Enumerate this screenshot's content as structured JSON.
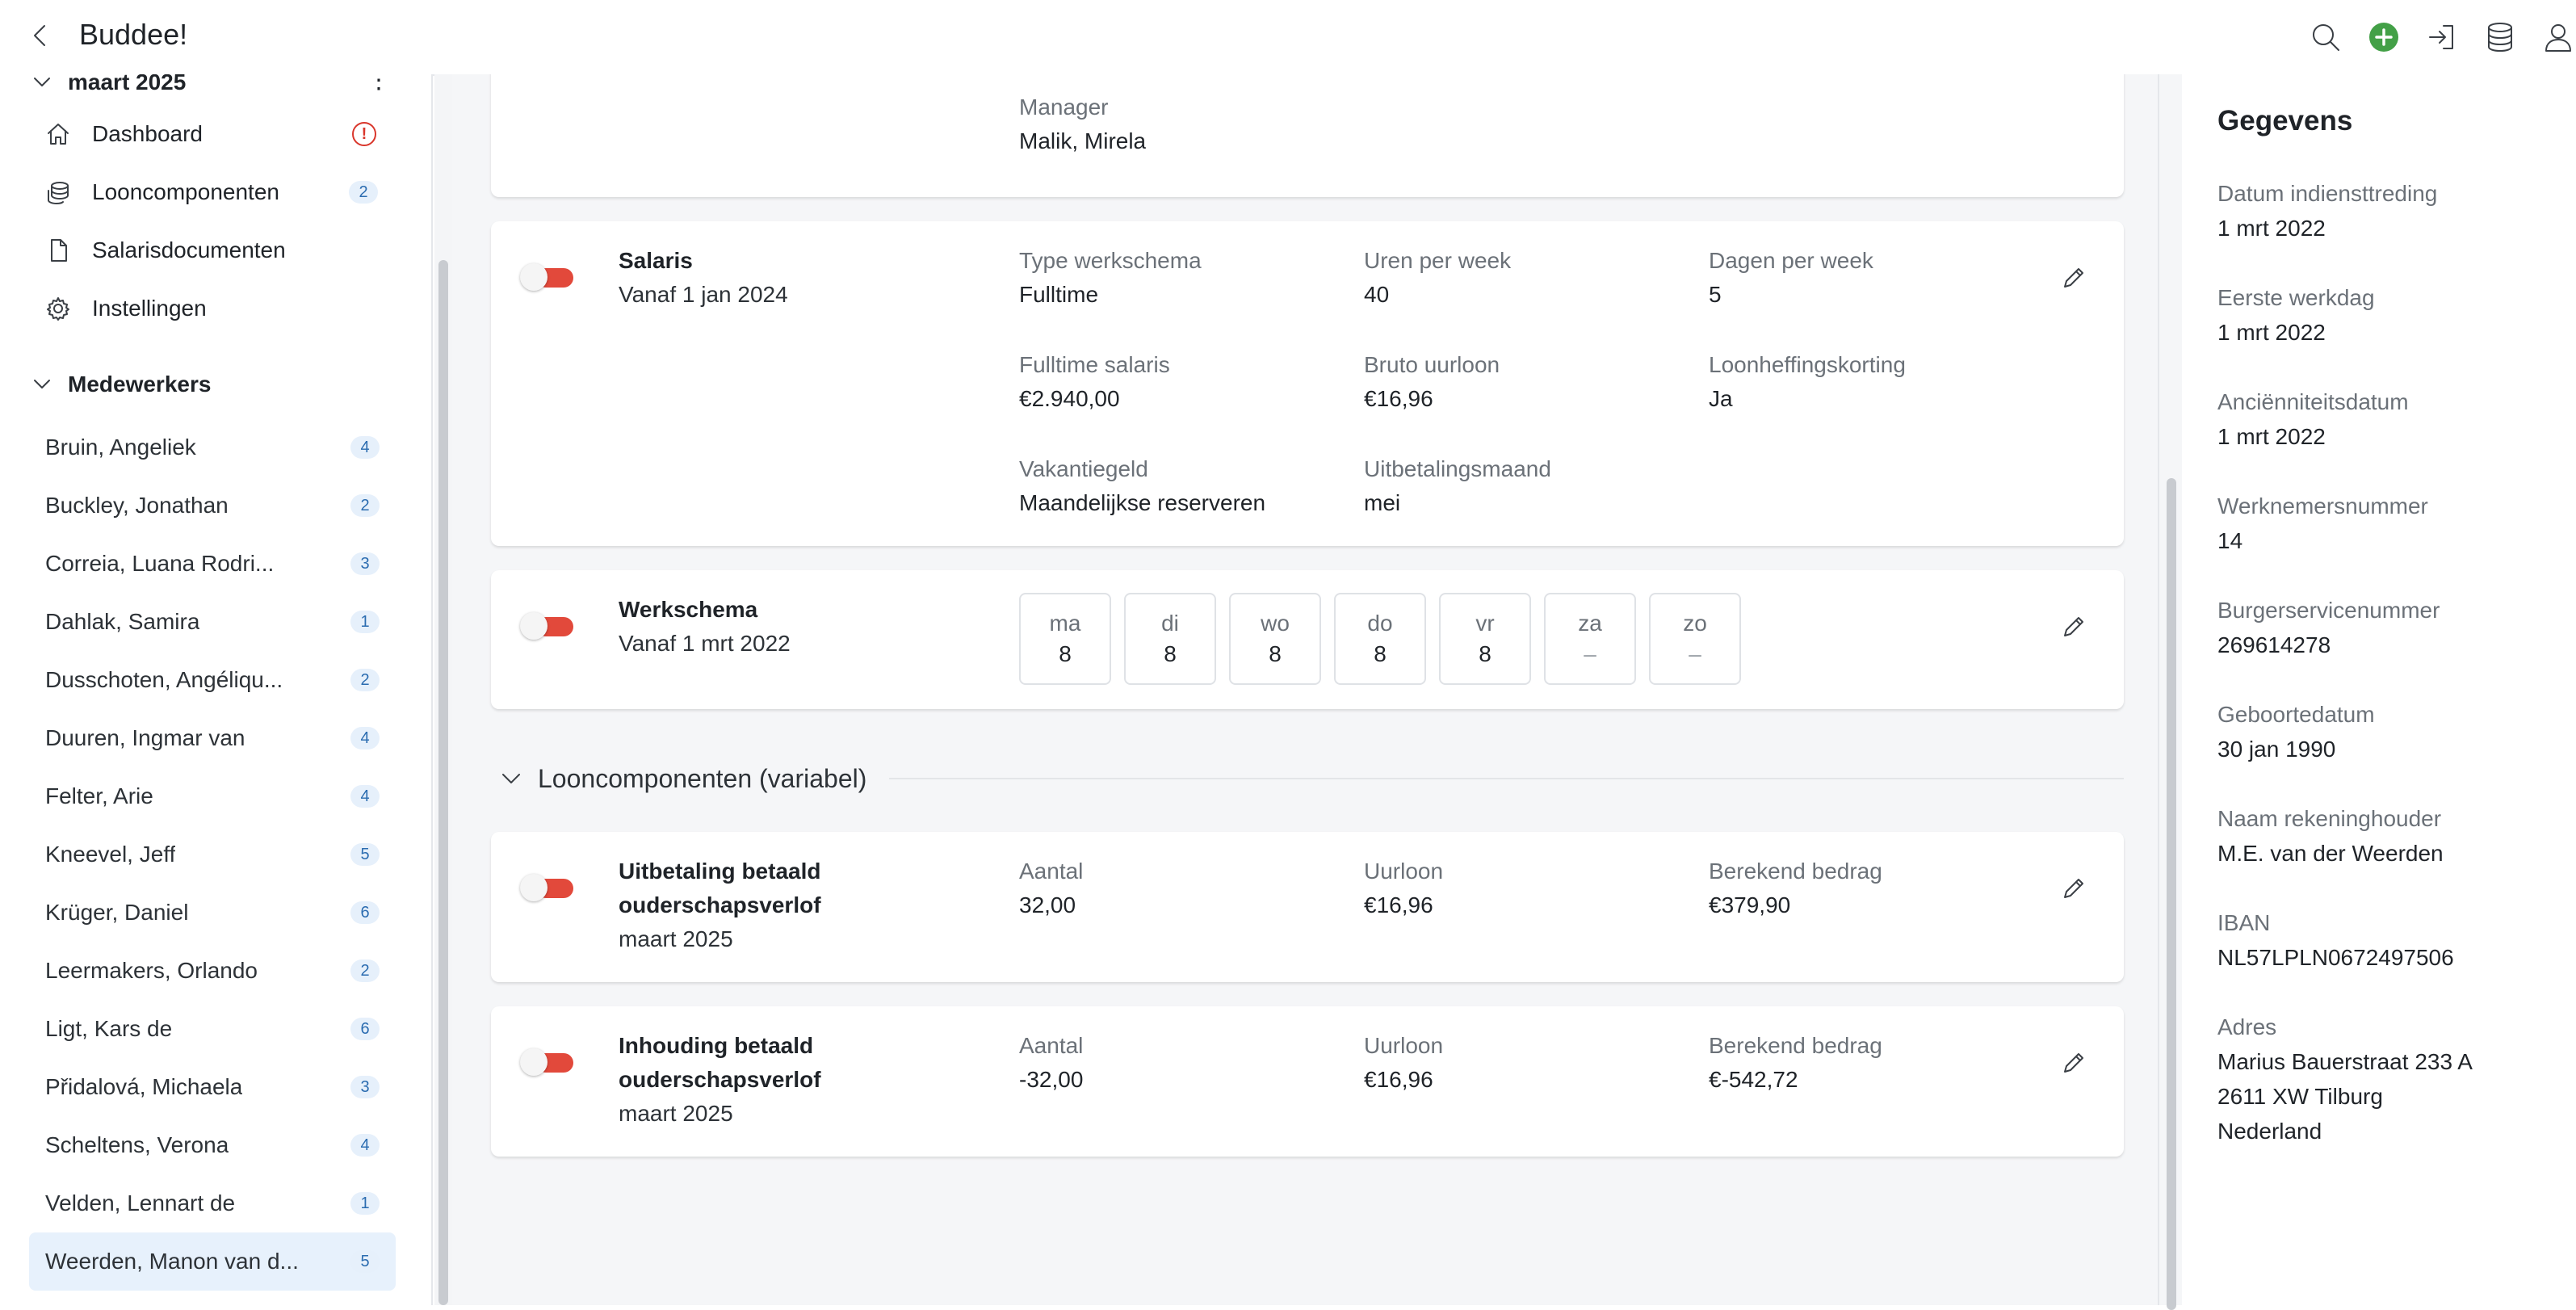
{
  "app": {
    "title": "Buddee!"
  },
  "topbar": {
    "icons": [
      "back-icon",
      "search-icon",
      "add-icon",
      "sign-in-icon",
      "database-icon",
      "user-icon"
    ],
    "add_color": "#43a047"
  },
  "sidebar": {
    "period": "maart 2025",
    "menu": [
      {
        "label": "Dashboard",
        "icon": "home-icon",
        "alert": "!"
      },
      {
        "label": "Looncomponenten",
        "icon": "coins-icon",
        "badge": "2"
      },
      {
        "label": "Salarisdocumenten",
        "icon": "document-icon"
      },
      {
        "label": "Instellingen",
        "icon": "gear-icon"
      }
    ],
    "employees_header": "Medewerkers",
    "employees": [
      {
        "name": "Bruin, Angeliek",
        "count": "4"
      },
      {
        "name": "Buckley, Jonathan",
        "count": "2"
      },
      {
        "name": "Correia, Luana Rodri...",
        "count": "3"
      },
      {
        "name": "Dahlak, Samira",
        "count": "1"
      },
      {
        "name": "Dusschoten, Angéliqu...",
        "count": "2"
      },
      {
        "name": "Duuren, Ingmar van",
        "count": "4"
      },
      {
        "name": "Felter, Arie",
        "count": "4"
      },
      {
        "name": "Kneevel, Jeff",
        "count": "5"
      },
      {
        "name": "Krüger, Daniel",
        "count": "6"
      },
      {
        "name": "Leermakers, Orlando",
        "count": "2"
      },
      {
        "name": "Ligt, Kars de",
        "count": "6"
      },
      {
        "name": "Přidalová, Michaela",
        "count": "3"
      },
      {
        "name": "Scheltens, Verona",
        "count": "4"
      },
      {
        "name": "Velden, Lennart de",
        "count": "1"
      },
      {
        "name": "Weerden, Manon van d...",
        "count": "5",
        "selected": true
      }
    ]
  },
  "main": {
    "manager_card": {
      "label": "Manager",
      "value": "Malik, Mirela"
    },
    "salaris_card": {
      "title": "Salaris",
      "subtitle": "Vanaf 1 jan 2024",
      "fields": [
        {
          "label": "Type werkschema",
          "value": "Fulltime"
        },
        {
          "label": "Uren per week",
          "value": "40"
        },
        {
          "label": "Dagen per week",
          "value": "5"
        },
        {
          "label": "Fulltime salaris",
          "value": "€2.940,00"
        },
        {
          "label": "Bruto uurloon",
          "value": "€16,96"
        },
        {
          "label": "Loonheffingskorting",
          "value": "Ja"
        },
        {
          "label": "Vakantiegeld",
          "value": "Maandelijkse reserveren"
        },
        {
          "label": "Uitbetalingsmaand",
          "value": "mei"
        }
      ]
    },
    "werkschema_card": {
      "title": "Werkschema",
      "subtitle": "Vanaf 1 mrt 2022",
      "days": [
        {
          "day": "ma",
          "hours": "8"
        },
        {
          "day": "di",
          "hours": "8"
        },
        {
          "day": "wo",
          "hours": "8"
        },
        {
          "day": "do",
          "hours": "8"
        },
        {
          "day": "vr",
          "hours": "8"
        },
        {
          "day": "za",
          "hours": "–"
        },
        {
          "day": "zo",
          "hours": "–"
        }
      ]
    },
    "variable_section": {
      "title": "Looncomponenten (variabel)"
    },
    "components": [
      {
        "title_line1": "Uitbetaling betaald",
        "title_line2": "ouderschapsverlof",
        "period": "maart 2025",
        "aantal_label": "Aantal",
        "aantal": "32,00",
        "uurloon_label": "Uurloon",
        "uurloon": "€16,96",
        "bedrag_label": "Berekend bedrag",
        "bedrag": "€379,90"
      },
      {
        "title_line1": "Inhouding betaald",
        "title_line2": "ouderschapsverlof",
        "period": "maart 2025",
        "aantal_label": "Aantal",
        "aantal": "-32,00",
        "uurloon_label": "Uurloon",
        "uurloon": "€16,96",
        "bedrag_label": "Berekend bedrag",
        "bedrag": "€-542,72"
      }
    ],
    "toggle_color": "#e2493b"
  },
  "panel": {
    "title": "Gegevens",
    "fields": [
      {
        "label": "Datum indiensttreding",
        "value": "1 mrt 2022"
      },
      {
        "label": "Eerste werkdag",
        "value": "1 mrt 2022"
      },
      {
        "label": "Anciënniteitsdatum",
        "value": "1 mrt 2022"
      },
      {
        "label": "Werknemersnummer",
        "value": "14"
      },
      {
        "label": "Burgerservicenummer",
        "value": "269614278"
      },
      {
        "label": "Geboortedatum",
        "value": "30 jan 1990"
      },
      {
        "label": "Naam rekeninghouder",
        "value": "M.E. van der Weerden"
      },
      {
        "label": "IBAN",
        "value": "NL57LPLN0672497506"
      }
    ],
    "address_label": "Adres",
    "address_lines": [
      "Marius Bauerstraat 233 A",
      "2611 XW Tilburg",
      "Nederland"
    ]
  }
}
